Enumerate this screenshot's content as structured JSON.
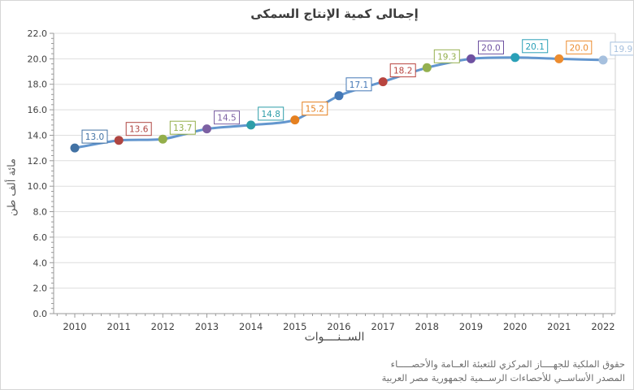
{
  "chart_data": {
    "type": "line",
    "title": "إجمالى كمية الإنتاج السمكى",
    "xlabel": "الســنــــوات",
    "ylabel": "مائة ألف طن",
    "categories": [
      "2010",
      "2011",
      "2012",
      "2013",
      "2014",
      "2015",
      "2016",
      "2017",
      "2018",
      "2019",
      "2020",
      "2021",
      "2022"
    ],
    "values": [
      13.0,
      13.6,
      13.7,
      14.5,
      14.8,
      15.2,
      17.1,
      18.2,
      19.3,
      20.0,
      20.1,
      20.0,
      19.9
    ],
    "point_labels": [
      "13.0",
      "13.6",
      "13.7",
      "14.5",
      "14.8",
      "15.2",
      "17.1",
      "18.2",
      "19.3",
      "20.0",
      "20.1",
      "20.0",
      "19.9"
    ],
    "ylim": [
      0,
      22
    ],
    "ytick_step": 2,
    "ytick_labels": [
      "0.0",
      "2.0",
      "4.0",
      "6.0",
      "8.0",
      "10.0",
      "12.0",
      "14.0",
      "16.0",
      "18.0",
      "20.0",
      "22.0"
    ],
    "grid": "horizontal",
    "legend": "none",
    "line_color": "#6396CE",
    "point_colors": [
      "#4272A4",
      "#AF4541",
      "#93AE4A",
      "#7C60A3",
      "#2D9DA8",
      "#E58020",
      "#4478B6",
      "#B8443F",
      "#94B04F",
      "#6E51A1",
      "#2AA0B7",
      "#EC8C2F",
      "#A6C0DE"
    ],
    "axis_color": "#9A9A9A",
    "gridline_color": "#DEDEDE",
    "tick_label_color": "#3F3F3F"
  },
  "footer": {
    "line1": "حقوق الملكية للجهــــاز المركزي للتعبئة العــامة والأحصـــــاء",
    "line2": "المصدر الأساســي للأحصاءات الرســمية لجمهورية مصر العربية"
  }
}
